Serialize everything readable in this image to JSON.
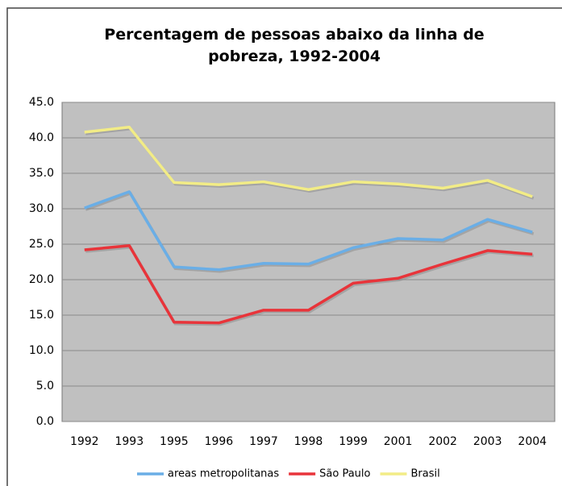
{
  "chart_data": {
    "type": "line",
    "title": "Percentagem de pessoas abaixo da linha de pobreza, 1992-2004",
    "categories": [
      "1992",
      "1993",
      "1995",
      "1996",
      "1997",
      "1998",
      "1999",
      "2001",
      "2002",
      "2003",
      "2004"
    ],
    "series": [
      {
        "name": "areas metropolitanas",
        "color": "#6aaee6",
        "values": [
          30.1,
          32.4,
          21.8,
          21.4,
          22.3,
          22.2,
          24.5,
          25.8,
          25.6,
          28.5,
          26.7
        ]
      },
      {
        "name": "São Paulo",
        "color": "#e8343a",
        "values": [
          24.2,
          24.8,
          14.0,
          13.9,
          15.7,
          15.7,
          19.5,
          20.2,
          22.2,
          24.1,
          23.6
        ]
      },
      {
        "name": "Brasil",
        "color": "#f2ec86",
        "values": [
          40.8,
          41.5,
          33.7,
          33.4,
          33.8,
          32.7,
          33.8,
          33.5,
          32.9,
          34.0,
          31.7
        ]
      }
    ],
    "ylim": [
      0,
      45
    ],
    "yticks": [
      {
        "value": 0,
        "label": "0.0"
      },
      {
        "value": 5,
        "label": "5.0"
      },
      {
        "value": 10,
        "label": "10.0"
      },
      {
        "value": 15,
        "label": "15.0"
      },
      {
        "value": 20,
        "label": "20.0"
      },
      {
        "value": 25,
        "label": "25.0"
      },
      {
        "value": 30,
        "label": "30.0"
      },
      {
        "value": 35,
        "label": "35.0"
      },
      {
        "value": 40,
        "label": "40.0"
      },
      {
        "value": 45,
        "label": "45.0"
      }
    ],
    "grid": true,
    "legend": "bottom"
  }
}
